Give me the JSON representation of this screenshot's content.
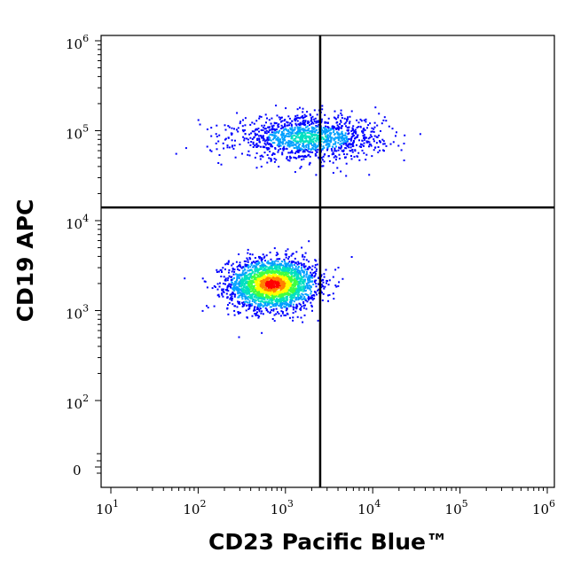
{
  "chart_data": {
    "type": "scatter",
    "subtype": "flow-cytometry density dot plot (pseudocolor)",
    "title": "",
    "xlabel": "CD23 Pacific Blue™",
    "ylabel": "CD19 APC",
    "x_scale": "log",
    "y_scale": "biexponential (log above ~10^2, linear near 0)",
    "xlim": [
      10,
      1000000
    ],
    "ylim": [
      -10,
      1000000
    ],
    "x_ticks": [
      {
        "base": "10",
        "exp": "1",
        "value": 10
      },
      {
        "base": "10",
        "exp": "2",
        "value": 100
      },
      {
        "base": "10",
        "exp": "3",
        "value": 1000
      },
      {
        "base": "10",
        "exp": "4",
        "value": 10000
      },
      {
        "base": "10",
        "exp": "5",
        "value": 100000
      },
      {
        "base": "10",
        "exp": "6",
        "value": 1000000
      }
    ],
    "y_ticks": [
      {
        "base": "10",
        "exp": "6",
        "value": 1000000
      },
      {
        "base": "10",
        "exp": "5",
        "value": 100000
      },
      {
        "base": "10",
        "exp": "4",
        "value": 10000
      },
      {
        "base": "10",
        "exp": "3",
        "value": 1000
      },
      {
        "base": "10",
        "exp": "2",
        "value": 100
      },
      {
        "base": "0",
        "exp": "",
        "value": 0
      }
    ],
    "quadrant_gates": {
      "x": 2500,
      "y": 14000
    },
    "populations": [
      {
        "center_x": 700,
        "center_y": 2000,
        "spread_log_x": 0.25,
        "spread_log_y": 0.14,
        "density": "high"
      },
      {
        "center_x": 1800,
        "center_y": 85000,
        "spread_log_x": 0.42,
        "spread_log_y": 0.12,
        "density": "medium"
      }
    ],
    "density_colors": [
      "#0000ff",
      "#00a0ff",
      "#00e0c0",
      "#40ff40",
      "#ffff00",
      "#ff8000",
      "#ff0000"
    ],
    "grid": false,
    "legend": "none"
  }
}
